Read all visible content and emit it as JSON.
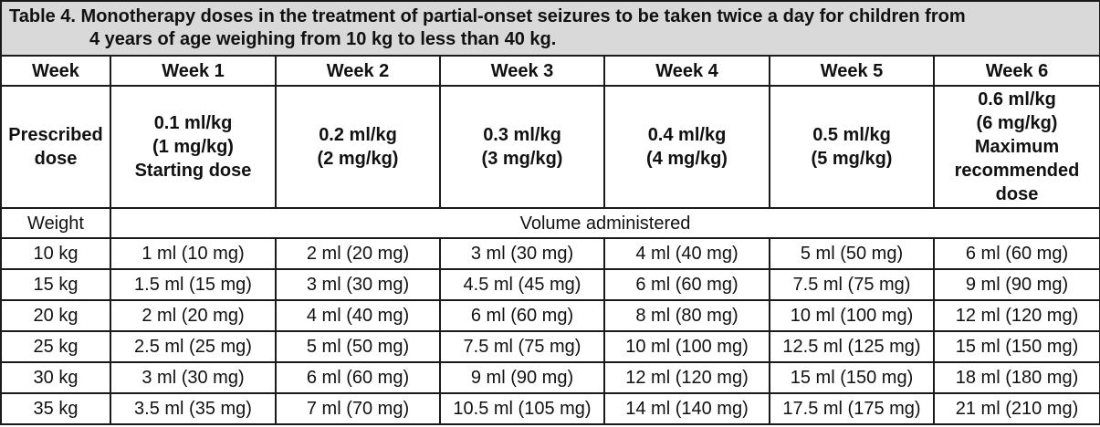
{
  "caption": {
    "line1": "Table 4. Monotherapy doses in the treatment of partial-onset seizures to be taken twice a day for children from",
    "line2": "4 years of age weighing from 10 kg to less than 40 kg."
  },
  "header": {
    "row_label": "Week",
    "weeks": [
      "Week 1",
      "Week 2",
      "Week 3",
      "Week 4",
      "Week 5",
      "Week 6"
    ]
  },
  "prescribed": {
    "row_label_line1": "Prescribed",
    "row_label_line2": "dose",
    "doses": [
      {
        "line1": "0.1 ml/kg",
        "line2": "(1 mg/kg)",
        "line3": "Starting dose",
        "line4": ""
      },
      {
        "line1": "0.2 ml/kg",
        "line2": "(2 mg/kg)",
        "line3": "",
        "line4": ""
      },
      {
        "line1": "0.3 ml/kg",
        "line2": "(3 mg/kg)",
        "line3": "",
        "line4": ""
      },
      {
        "line1": "0.4 ml/kg",
        "line2": "(4 mg/kg)",
        "line3": "",
        "line4": ""
      },
      {
        "line1": "0.5 ml/kg",
        "line2": "(5 mg/kg)",
        "line3": "",
        "line4": ""
      },
      {
        "line1": "0.6 ml/kg",
        "line2": "(6 mg/kg)",
        "line3": "Maximum",
        "line4": "recommended",
        "line5": "dose"
      }
    ]
  },
  "subheader": {
    "weight_label": "Weight",
    "volume_label": "Volume administered"
  },
  "rows": [
    {
      "weight": "10 kg",
      "values": [
        "1 ml (10 mg)",
        "2 ml (20 mg)",
        "3 ml (30 mg)",
        "4 ml (40 mg)",
        "5 ml (50 mg)",
        "6 ml (60 mg)"
      ]
    },
    {
      "weight": "15 kg",
      "values": [
        "1.5 ml (15 mg)",
        "3 ml (30 mg)",
        "4.5 ml (45 mg)",
        "6 ml (60 mg)",
        "7.5 ml (75 mg)",
        "9 ml (90 mg)"
      ]
    },
    {
      "weight": "20 kg",
      "values": [
        "2 ml (20 mg)",
        "4 ml (40 mg)",
        "6 ml (60 mg)",
        "8 ml (80 mg)",
        "10 ml (100 mg)",
        "12 ml (120 mg)"
      ]
    },
    {
      "weight": "25 kg",
      "values": [
        "2.5 ml (25 mg)",
        "5 ml (50 mg)",
        "7.5 ml (75 mg)",
        "10 ml (100 mg)",
        "12.5 ml (125 mg)",
        "15 ml (150 mg)"
      ]
    },
    {
      "weight": "30 kg",
      "values": [
        "3 ml (30 mg)",
        "6 ml (60 mg)",
        "9 ml (90 mg)",
        "12 ml (120 mg)",
        "15 ml (150 mg)",
        "18 ml (180 mg)"
      ]
    },
    {
      "weight": "35 kg",
      "values": [
        "3.5 ml (35 mg)",
        "7 ml (70 mg)",
        "10.5 ml (105 mg)",
        "14 ml (140 mg)",
        "17.5 ml (175 mg)",
        "21 ml (210 mg)"
      ]
    }
  ]
}
